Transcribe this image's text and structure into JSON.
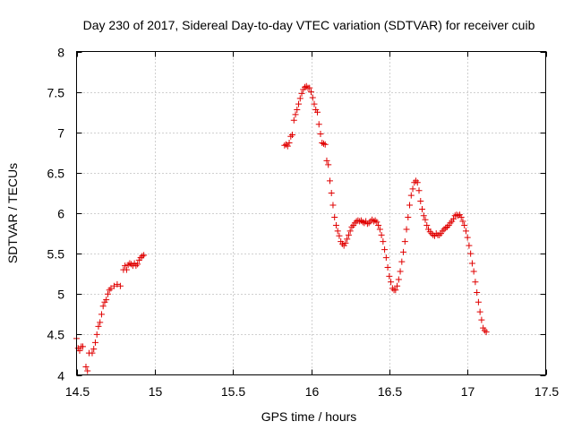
{
  "chart_data": {
    "type": "scatter",
    "title": "Day 230 of 2017, Sidereal Day-to-day VTEC variation (SDTVAR) for receiver cuib",
    "xlabel": "GPS time / hours",
    "ylabel": "SDTVAR / TECUs",
    "xlim": [
      14.5,
      17.5
    ],
    "ylim": [
      4,
      8
    ],
    "xticks": [
      "14.5",
      "15",
      "15.5",
      "16",
      "16.5",
      "17",
      "17.5"
    ],
    "yticks": [
      "4",
      "4.5",
      "5",
      "5.5",
      "6",
      "6.5",
      "7",
      "7.5",
      "8"
    ],
    "grid": true,
    "marker": "+",
    "color": "#e00000",
    "series": [
      {
        "name": "SDTVAR",
        "points": [
          [
            14.5,
            4.45
          ],
          [
            14.51,
            4.33
          ],
          [
            14.52,
            4.3
          ],
          [
            14.53,
            4.35
          ],
          [
            14.54,
            4.35
          ],
          [
            14.56,
            4.1
          ],
          [
            14.57,
            4.05
          ],
          [
            14.58,
            4.27
          ],
          [
            14.6,
            4.27
          ],
          [
            14.61,
            4.32
          ],
          [
            14.62,
            4.4
          ],
          [
            14.63,
            4.5
          ],
          [
            14.64,
            4.6
          ],
          [
            14.65,
            4.65
          ],
          [
            14.66,
            4.75
          ],
          [
            14.67,
            4.85
          ],
          [
            14.68,
            4.9
          ],
          [
            14.69,
            4.93
          ],
          [
            14.7,
            5.0
          ],
          [
            14.71,
            5.05
          ],
          [
            14.72,
            5.07
          ],
          [
            14.74,
            5.1
          ],
          [
            14.76,
            5.12
          ],
          [
            14.78,
            5.1
          ],
          [
            14.8,
            5.3
          ],
          [
            14.81,
            5.35
          ],
          [
            14.82,
            5.3
          ],
          [
            14.83,
            5.36
          ],
          [
            14.84,
            5.38
          ],
          [
            14.85,
            5.37
          ],
          [
            14.86,
            5.35
          ],
          [
            14.87,
            5.38
          ],
          [
            14.88,
            5.35
          ],
          [
            14.89,
            5.37
          ],
          [
            14.9,
            5.42
          ],
          [
            14.91,
            5.45
          ],
          [
            14.92,
            5.47
          ],
          [
            14.93,
            5.48
          ],
          [
            15.83,
            6.84
          ],
          [
            15.84,
            6.85
          ],
          [
            15.85,
            6.83
          ],
          [
            15.86,
            6.87
          ],
          [
            15.87,
            6.95
          ],
          [
            15.88,
            6.97
          ],
          [
            15.89,
            7.15
          ],
          [
            15.9,
            7.22
          ],
          [
            15.91,
            7.28
          ],
          [
            15.92,
            7.35
          ],
          [
            15.93,
            7.42
          ],
          [
            15.94,
            7.48
          ],
          [
            15.95,
            7.53
          ],
          [
            15.96,
            7.56
          ],
          [
            15.97,
            7.57
          ],
          [
            15.98,
            7.55
          ],
          [
            15.99,
            7.55
          ],
          [
            16.0,
            7.5
          ],
          [
            16.01,
            7.43
          ],
          [
            16.02,
            7.35
          ],
          [
            16.03,
            7.28
          ],
          [
            16.04,
            7.25
          ],
          [
            16.05,
            7.1
          ],
          [
            16.06,
            6.98
          ],
          [
            16.07,
            6.87
          ],
          [
            16.08,
            6.86
          ],
          [
            16.09,
            6.85
          ],
          [
            16.1,
            6.65
          ],
          [
            16.11,
            6.6
          ],
          [
            16.12,
            6.4
          ],
          [
            16.13,
            6.25
          ],
          [
            16.14,
            6.1
          ],
          [
            16.15,
            5.95
          ],
          [
            16.16,
            5.85
          ],
          [
            16.17,
            5.78
          ],
          [
            16.18,
            5.72
          ],
          [
            16.19,
            5.65
          ],
          [
            16.2,
            5.62
          ],
          [
            16.21,
            5.6
          ],
          [
            16.22,
            5.63
          ],
          [
            16.23,
            5.68
          ],
          [
            16.24,
            5.73
          ],
          [
            16.25,
            5.78
          ],
          [
            16.26,
            5.83
          ],
          [
            16.27,
            5.85
          ],
          [
            16.28,
            5.88
          ],
          [
            16.29,
            5.9
          ],
          [
            16.3,
            5.91
          ],
          [
            16.31,
            5.9
          ],
          [
            16.32,
            5.91
          ],
          [
            16.33,
            5.89
          ],
          [
            16.34,
            5.88
          ],
          [
            16.35,
            5.9
          ],
          [
            16.36,
            5.87
          ],
          [
            16.37,
            5.88
          ],
          [
            16.38,
            5.9
          ],
          [
            16.39,
            5.92
          ],
          [
            16.4,
            5.9
          ],
          [
            16.41,
            5.91
          ],
          [
            16.42,
            5.89
          ],
          [
            16.43,
            5.85
          ],
          [
            16.44,
            5.8
          ],
          [
            16.45,
            5.73
          ],
          [
            16.46,
            5.65
          ],
          [
            16.47,
            5.55
          ],
          [
            16.48,
            5.45
          ],
          [
            16.49,
            5.33
          ],
          [
            16.5,
            5.22
          ],
          [
            16.51,
            5.15
          ],
          [
            16.52,
            5.07
          ],
          [
            16.53,
            5.05
          ],
          [
            16.54,
            5.05
          ],
          [
            16.55,
            5.1
          ],
          [
            16.56,
            5.18
          ],
          [
            16.57,
            5.28
          ],
          [
            16.58,
            5.4
          ],
          [
            16.59,
            5.52
          ],
          [
            16.6,
            5.65
          ],
          [
            16.61,
            5.8
          ],
          [
            16.62,
            5.95
          ],
          [
            16.63,
            6.1
          ],
          [
            16.64,
            6.22
          ],
          [
            16.65,
            6.3
          ],
          [
            16.66,
            6.38
          ],
          [
            16.67,
            6.4
          ],
          [
            16.68,
            6.38
          ],
          [
            16.69,
            6.28
          ],
          [
            16.7,
            6.15
          ],
          [
            16.71,
            6.05
          ],
          [
            16.72,
            5.97
          ],
          [
            16.73,
            5.92
          ],
          [
            16.74,
            5.85
          ],
          [
            16.75,
            5.8
          ],
          [
            16.76,
            5.77
          ],
          [
            16.77,
            5.75
          ],
          [
            16.78,
            5.73
          ],
          [
            16.79,
            5.72
          ],
          [
            16.8,
            5.75
          ],
          [
            16.81,
            5.73
          ],
          [
            16.82,
            5.73
          ],
          [
            16.83,
            5.75
          ],
          [
            16.84,
            5.78
          ],
          [
            16.85,
            5.8
          ],
          [
            16.86,
            5.82
          ],
          [
            16.87,
            5.83
          ],
          [
            16.88,
            5.85
          ],
          [
            16.89,
            5.88
          ],
          [
            16.9,
            5.9
          ],
          [
            16.91,
            5.93
          ],
          [
            16.92,
            5.97
          ],
          [
            16.93,
            5.98
          ],
          [
            16.94,
            5.97
          ],
          [
            16.95,
            5.98
          ],
          [
            16.96,
            5.95
          ],
          [
            16.97,
            5.9
          ],
          [
            16.98,
            5.85
          ],
          [
            16.99,
            5.78
          ],
          [
            17.0,
            5.7
          ],
          [
            17.01,
            5.6
          ],
          [
            17.02,
            5.5
          ],
          [
            17.03,
            5.38
          ],
          [
            17.04,
            5.28
          ],
          [
            17.05,
            5.15
          ],
          [
            17.06,
            5.02
          ],
          [
            17.07,
            4.9
          ],
          [
            17.08,
            4.78
          ],
          [
            17.09,
            4.68
          ],
          [
            17.1,
            4.58
          ],
          [
            17.11,
            4.55
          ],
          [
            17.12,
            4.53
          ]
        ]
      }
    ]
  }
}
